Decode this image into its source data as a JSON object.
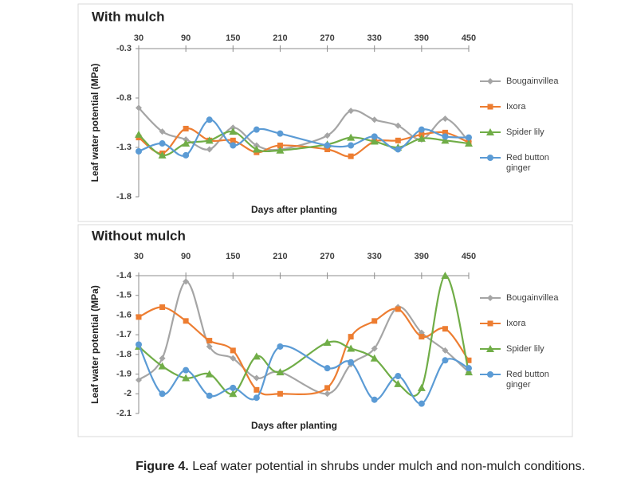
{
  "chart_data": [
    {
      "type": "line",
      "title": "With mulch",
      "xlabel": "Days after planting",
      "ylabel": "Leaf water potential (MPa)",
      "x": [
        30,
        60,
        90,
        120,
        150,
        180,
        210,
        270,
        300,
        330,
        360,
        390,
        420,
        450
      ],
      "xlim": [
        30,
        450
      ],
      "xticks": [
        30,
        90,
        150,
        210,
        270,
        330,
        390,
        450
      ],
      "ylim": [
        -1.8,
        -0.3
      ],
      "yticks": [
        -0.3,
        -0.8,
        -1.3,
        -1.8
      ],
      "legend": "right",
      "series": [
        {
          "name": "Bougainvillea",
          "color": "#a5a5a5",
          "marker": "diamond",
          "values": [
            -0.9,
            -1.14,
            -1.22,
            -1.32,
            -1.1,
            -1.28,
            -1.32,
            -1.18,
            -0.93,
            -1.02,
            -1.08,
            -1.22,
            -1.01,
            -1.24
          ]
        },
        {
          "name": "Ixora",
          "color": "#ed7d31",
          "marker": "square",
          "values": [
            -1.2,
            -1.36,
            -1.11,
            -1.23,
            -1.23,
            -1.35,
            -1.28,
            -1.32,
            -1.39,
            -1.24,
            -1.23,
            -1.17,
            -1.15,
            -1.25
          ]
        },
        {
          "name": "Spider lily",
          "color": "#70ad47",
          "marker": "triangle",
          "values": [
            -1.17,
            -1.38,
            -1.26,
            -1.23,
            -1.14,
            -1.32,
            -1.33,
            -1.27,
            -1.2,
            -1.24,
            -1.3,
            -1.21,
            -1.23,
            -1.26
          ]
        },
        {
          "name": "Red button ginger",
          "color": "#5b9bd5",
          "marker": "circle",
          "values": [
            -1.34,
            -1.26,
            -1.38,
            -1.02,
            -1.28,
            -1.12,
            -1.16,
            -1.28,
            -1.28,
            -1.19,
            -1.32,
            -1.12,
            -1.19,
            -1.2
          ]
        }
      ]
    },
    {
      "type": "line",
      "title": "Without mulch",
      "xlabel": "Days after planting",
      "ylabel": "Leaf water potential (MPa)",
      "x": [
        30,
        60,
        90,
        120,
        150,
        180,
        210,
        270,
        300,
        330,
        360,
        390,
        420,
        450
      ],
      "xlim": [
        30,
        450
      ],
      "xticks": [
        30,
        90,
        150,
        210,
        270,
        330,
        390,
        450
      ],
      "ylim": [
        -2.1,
        -1.4
      ],
      "yticks": [
        -1.4,
        -1.5,
        -1.6,
        -1.7,
        -1.8,
        -1.9,
        -2,
        -2.1
      ],
      "legend": "right",
      "series": [
        {
          "name": "Bougainvillea",
          "color": "#a5a5a5",
          "marker": "diamond",
          "values": [
            -1.93,
            -1.82,
            -1.43,
            -1.76,
            -1.82,
            -1.92,
            -1.89,
            -2.0,
            -1.85,
            -1.77,
            -1.56,
            -1.69,
            -1.78,
            -1.89
          ]
        },
        {
          "name": "Ixora",
          "color": "#ed7d31",
          "marker": "square",
          "values": [
            -1.61,
            -1.56,
            -1.63,
            -1.73,
            -1.78,
            -1.98,
            -2.0,
            -1.97,
            -1.71,
            -1.63,
            -1.57,
            -1.71,
            -1.67,
            -1.83
          ]
        },
        {
          "name": "Spider lily",
          "color": "#70ad47",
          "marker": "triangle",
          "values": [
            -1.76,
            -1.86,
            -1.92,
            -1.9,
            -2.0,
            -1.81,
            -1.89,
            -1.74,
            -1.77,
            -1.82,
            -1.95,
            -1.97,
            -1.4,
            -1.89
          ]
        },
        {
          "name": "Red button ginger",
          "color": "#5b9bd5",
          "marker": "circle",
          "values": [
            -1.75,
            -2.0,
            -1.88,
            -2.01,
            -1.97,
            -2.02,
            -1.76,
            -1.87,
            -1.84,
            -2.03,
            -1.91,
            -2.05,
            -1.83,
            -1.87
          ]
        }
      ]
    }
  ],
  "caption": {
    "label": "Figure 4.",
    "text": "Leaf water potential in shrubs under mulch and non-mulch conditions."
  }
}
